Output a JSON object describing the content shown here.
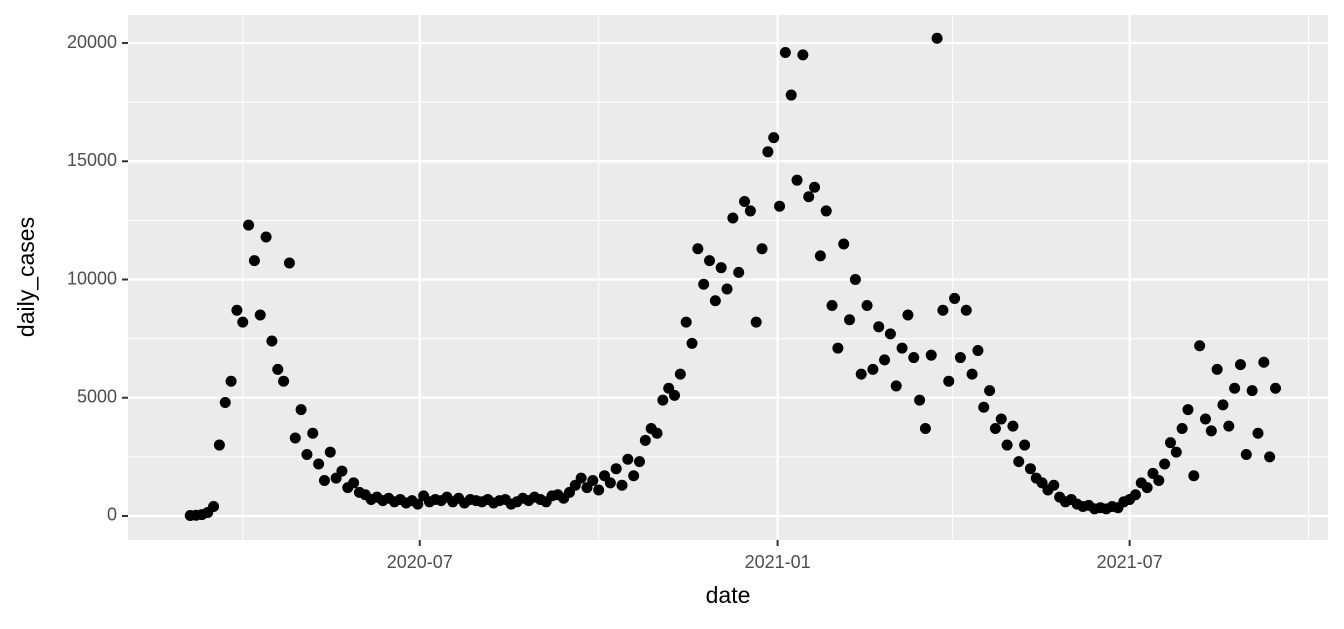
{
  "chart_data": {
    "type": "scatter",
    "x_label": "date",
    "y_label": "daily_cases",
    "color": "#000000",
    "xlim": [
      18294,
      18911
    ],
    "xticks": [
      {
        "value": 18444,
        "label": "2020-07"
      },
      {
        "value": 18628,
        "label": "2021-01"
      },
      {
        "value": 18809,
        "label": "2021-07"
      }
    ],
    "x_minor_ticks": [
      18353,
      18536,
      18718,
      18901
    ],
    "ylim": [
      -1015,
      21185
    ],
    "yticks": [
      0,
      5000,
      10000,
      15000,
      20000
    ],
    "y_minor_ticks": [
      2500,
      7500,
      12500,
      17500
    ],
    "grid": true,
    "x": [
      18326,
      18329,
      18332,
      18335,
      18338,
      18341,
      18344,
      18347,
      18350,
      18353,
      18356,
      18359,
      18362,
      18365,
      18368,
      18371,
      18374,
      18377,
      18380,
      18383,
      18386,
      18389,
      18392,
      18395,
      18398,
      18401,
      18404,
      18407,
      18410,
      18413,
      18416,
      18419,
      18422,
      18425,
      18428,
      18431,
      18434,
      18437,
      18440,
      18443,
      18446,
      18449,
      18452,
      18455,
      18458,
      18461,
      18464,
      18467,
      18470,
      18473,
      18476,
      18479,
      18482,
      18485,
      18488,
      18491,
      18494,
      18497,
      18500,
      18503,
      18506,
      18509,
      18512,
      18515,
      18518,
      18521,
      18524,
      18527,
      18530,
      18533,
      18536,
      18539,
      18542,
      18545,
      18548,
      18551,
      18554,
      18557,
      18560,
      18563,
      18566,
      18569,
      18572,
      18575,
      18578,
      18581,
      18584,
      18587,
      18590,
      18593,
      18596,
      18599,
      18602,
      18605,
      18608,
      18611,
      18614,
      18617,
      18620,
      18623,
      18626,
      18629,
      18632,
      18635,
      18638,
      18641,
      18644,
      18647,
      18650,
      18653,
      18656,
      18659,
      18662,
      18665,
      18668,
      18671,
      18674,
      18677,
      18680,
      18683,
      18686,
      18689,
      18692,
      18695,
      18698,
      18701,
      18704,
      18707,
      18710,
      18713,
      18716,
      18719,
      18722,
      18725,
      18728,
      18731,
      18734,
      18737,
      18740,
      18743,
      18746,
      18749,
      18752,
      18755,
      18758,
      18761,
      18764,
      18767,
      18770,
      18773,
      18776,
      18779,
      18782,
      18785,
      18788,
      18791,
      18794,
      18797,
      18800,
      18803,
      18806,
      18809,
      18812,
      18815,
      18818,
      18821,
      18824,
      18827,
      18830,
      18833,
      18836,
      18839,
      18842,
      18845,
      18848,
      18851,
      18854,
      18857,
      18860,
      18863,
      18866,
      18869,
      18872,
      18875,
      18878,
      18881,
      18884
    ],
    "values": [
      20,
      30,
      60,
      150,
      400,
      3000,
      4800,
      5700,
      8700,
      8200,
      12300,
      10800,
      8500,
      11800,
      7400,
      6200,
      5700,
      10700,
      3300,
      4500,
      2600,
      3500,
      2200,
      1500,
      2700,
      1600,
      1900,
      1200,
      1400,
      1000,
      900,
      700,
      800,
      650,
      750,
      600,
      700,
      550,
      650,
      500,
      850,
      600,
      700,
      650,
      800,
      600,
      750,
      550,
      700,
      650,
      600,
      700,
      550,
      650,
      700,
      500,
      600,
      750,
      650,
      800,
      700,
      600,
      850,
      900,
      750,
      1000,
      1300,
      1600,
      1200,
      1500,
      1100,
      1700,
      1400,
      2000,
      1300,
      2400,
      1700,
      2300,
      3200,
      3700,
      3500,
      4900,
      5400,
      5100,
      6000,
      8200,
      7300,
      11300,
      9800,
      10800,
      9100,
      10500,
      9600,
      12600,
      10300,
      13300,
      12900,
      8200,
      11300,
      15400,
      16000,
      13100,
      19600,
      17800,
      14200,
      19500,
      13500,
      13900,
      11000,
      12900,
      8900,
      7100,
      11500,
      8300,
      10000,
      6000,
      8900,
      6200,
      8000,
      6600,
      7700,
      5500,
      7100,
      8500,
      6700,
      4900,
      3700,
      6800,
      20200,
      8700,
      5700,
      9200,
      6700,
      8700,
      6000,
      7000,
      4600,
      5300,
      3700,
      4100,
      3000,
      3800,
      2300,
      3000,
      2000,
      1600,
      1400,
      1100,
      1300,
      800,
      600,
      700,
      500,
      400,
      450,
      300,
      350,
      300,
      400,
      350,
      600,
      700,
      900,
      1400,
      1200,
      1800,
      1500,
      2200,
      3100,
      2700,
      3700,
      4500,
      1700,
      7200,
      4100,
      3600,
      6200,
      4700,
      3800,
      5400,
      6400,
      2600,
      5300,
      3500,
      6500,
      2500,
      5400
    ]
  }
}
